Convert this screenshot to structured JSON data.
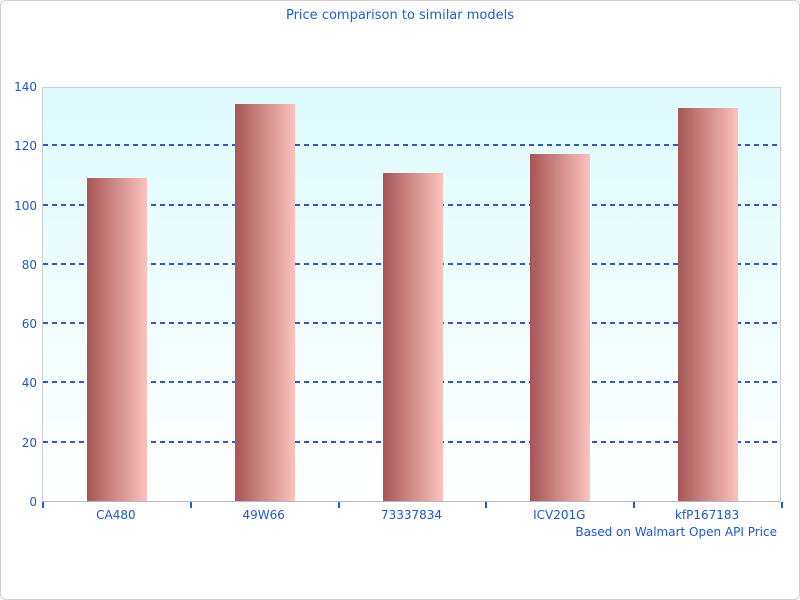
{
  "title": "Price comparison to similar models",
  "footer_note": "Based on Walmart Open API Price",
  "colors": {
    "title_text": "#1c5fd0",
    "axis_text": "#1d58c9",
    "gridline": "#3558be",
    "tick": "#2b5fc7",
    "plot_border": "#c9ced6",
    "axis_line": "#b2b9c4",
    "plot_bg_top": "#defbfe",
    "plot_bg_bottom": "#ffffff",
    "bar_gradient_left": "#a65655",
    "bar_gradient_right": "#fcc2be"
  },
  "chart_data": {
    "type": "bar",
    "categories": [
      "CA480",
      "49W66",
      "73337834",
      "ICV201G",
      "kfP167183"
    ],
    "values": [
      109,
      134,
      110.5,
      117,
      132.5
    ],
    "title": "Price comparison to similar models",
    "xlabel": "",
    "ylabel": "",
    "ylim": [
      0,
      140
    ],
    "ytick_step": 20,
    "yticks": [
      0,
      20,
      40,
      60,
      80,
      100,
      120,
      140
    ],
    "grid": "horizontal-dashed",
    "legend": "none",
    "annotation": "Based on Walmart Open API Price"
  }
}
